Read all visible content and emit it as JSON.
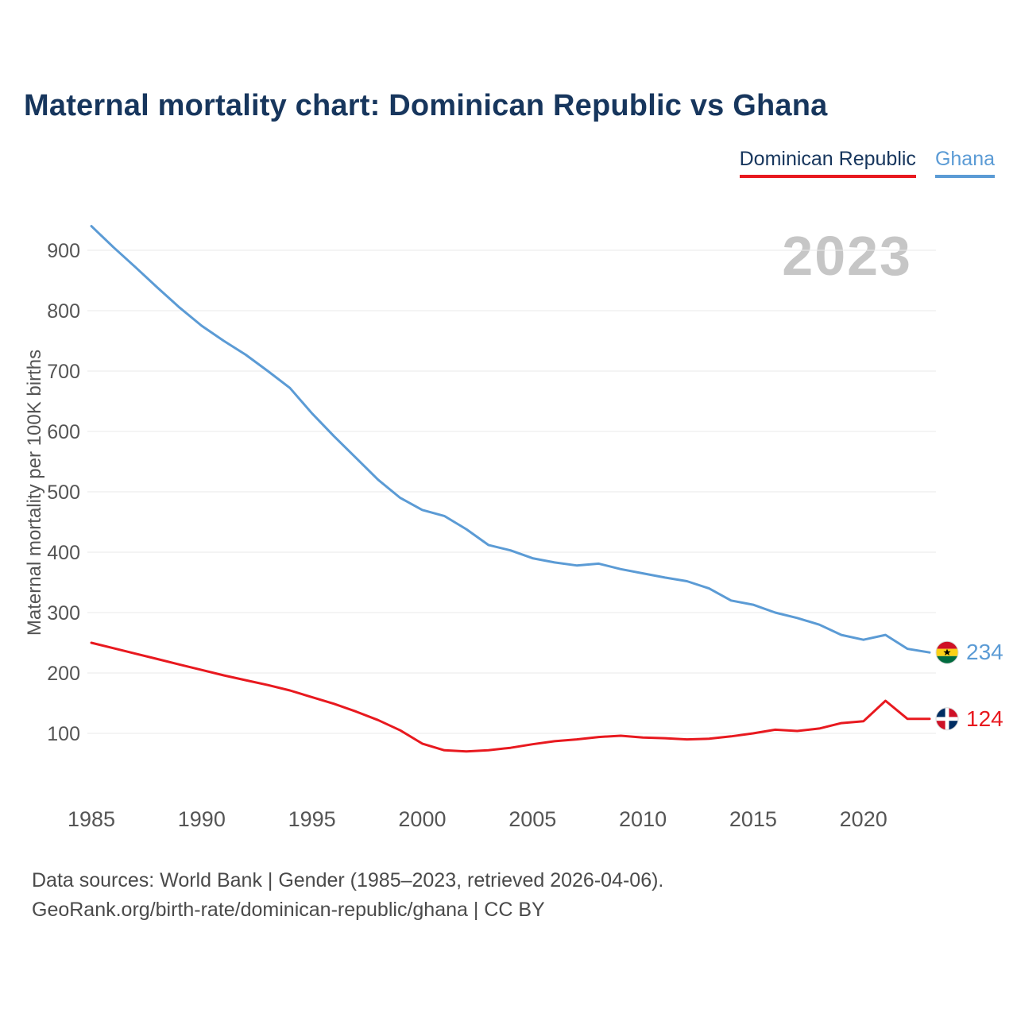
{
  "title": "Maternal mortality chart: Dominican Republic vs Ghana",
  "watermark": "2023",
  "legend": {
    "dominican_republic": "Dominican Republic",
    "ghana": "Ghana"
  },
  "colors": {
    "title_navy": "#17365d",
    "dominican_red": "#e8191f",
    "ghana_blue": "#5b9bd5",
    "grid": "#e9e9e9",
    "axis_text": "#555555",
    "watermark_gray": "#c6c6c6"
  },
  "chart_data": {
    "type": "line",
    "title": "Maternal mortality chart: Dominican Republic vs Ghana",
    "xlabel": "",
    "ylabel": "Maternal mortality per 100K births",
    "x": [
      1985,
      1986,
      1987,
      1988,
      1989,
      1990,
      1991,
      1992,
      1993,
      1994,
      1995,
      1996,
      1997,
      1998,
      1999,
      2000,
      2001,
      2002,
      2003,
      2004,
      2005,
      2006,
      2007,
      2008,
      2009,
      2010,
      2011,
      2012,
      2013,
      2014,
      2015,
      2016,
      2017,
      2018,
      2019,
      2020,
      2021,
      2022,
      2023
    ],
    "xticks": [
      1985,
      1990,
      1995,
      2000,
      2005,
      2010,
      2015,
      2020
    ],
    "yticks": [
      100,
      200,
      300,
      400,
      500,
      600,
      700,
      800,
      900
    ],
    "ylim": [
      40,
      960
    ],
    "grid": true,
    "legend_position": "top-right",
    "series": [
      {
        "name": "Ghana",
        "color": "#5b9bd5",
        "end_label": "234",
        "flag": "ghana",
        "values": [
          940,
          905,
          872,
          838,
          805,
          775,
          750,
          727,
          700,
          672,
          630,
          592,
          556,
          520,
          490,
          470,
          460,
          438,
          412,
          403,
          390,
          383,
          378,
          381,
          372,
          365,
          358,
          352,
          340,
          320,
          313,
          300,
          291,
          280,
          263,
          255,
          263,
          240,
          234
        ]
      },
      {
        "name": "Dominican Republic",
        "color": "#e8191f",
        "end_label": "124",
        "flag": "dominican-republic",
        "values": [
          250,
          241,
          232,
          223,
          214,
          205,
          196,
          188,
          180,
          171,
          160,
          149,
          136,
          122,
          105,
          83,
          72,
          70,
          72,
          76,
          82,
          87,
          90,
          94,
          96,
          93,
          92,
          90,
          91,
          95,
          100,
          106,
          104,
          108,
          117,
          120,
          154,
          124,
          124
        ]
      }
    ]
  },
  "footer": {
    "line1": "Data sources: World Bank | Gender (1985–2023, retrieved 2026-04-06).",
    "line2": "GeoRank.org/birth-rate/dominican-republic/ghana | CC BY"
  }
}
